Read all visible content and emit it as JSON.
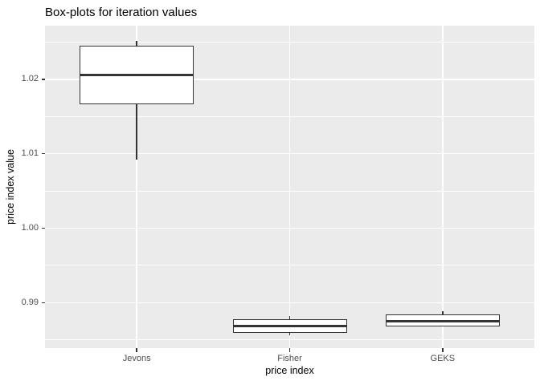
{
  "chart_data": {
    "type": "boxplot",
    "title": "Box-plots for iteration values",
    "xlabel": "price index",
    "ylabel": "price index value",
    "categories": [
      "Jevons",
      "Fisher",
      "GEKS"
    ],
    "boxes": [
      {
        "category": "Jevons",
        "whisker_low": 1.0092,
        "q1": 1.0166,
        "median": 1.0206,
        "q3": 1.0245,
        "whisker_high": 1.0252
      },
      {
        "category": "Fisher",
        "whisker_low": 0.9856,
        "q1": 0.9859,
        "median": 0.9869,
        "q3": 0.9878,
        "whisker_high": 0.9882
      },
      {
        "category": "GEKS",
        "whisker_low": 0.9868,
        "q1": 0.9868,
        "median": 0.9875,
        "q3": 0.9884,
        "whisker_high": 0.9889
      }
    ],
    "y_ticks": [
      {
        "value": 0.99,
        "label": "0.99"
      },
      {
        "value": 1.0,
        "label": "1.00"
      },
      {
        "value": 1.01,
        "label": "1.01"
      },
      {
        "value": 1.02,
        "label": "1.02"
      }
    ],
    "y_minor": [
      0.985,
      0.995,
      1.005,
      1.015,
      1.025
    ],
    "ylim": [
      0.9839,
      1.0272
    ],
    "grid": true,
    "legend": "none",
    "colors": {
      "panel_bg": "#EBEBEB",
      "grid": "#FFFFFF",
      "box_stroke": "#333333",
      "box_fill": "#FFFFFF",
      "axis_text": "#4D4D4D",
      "tick_mark": "#333333",
      "title_text": "#000000"
    }
  }
}
